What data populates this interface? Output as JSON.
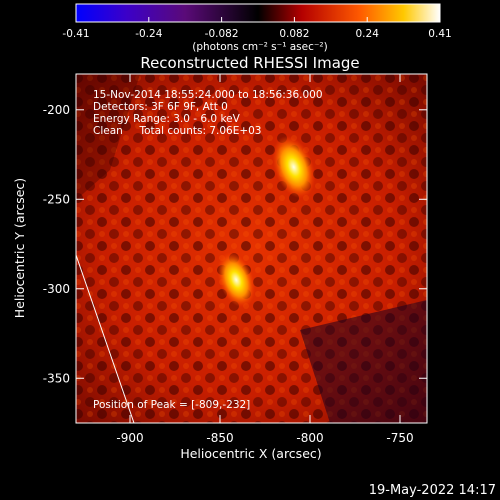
{
  "chart_data": {
    "type": "heatmap",
    "title": "Reconstructed RHESSI Image",
    "xlabel": "Heliocentric X (arcsec)",
    "ylabel": "Heliocentric Y (arcsec)",
    "xlim": [
      -930,
      -735
    ],
    "ylim": [
      -375,
      -180
    ],
    "xticks": [
      -900,
      -850,
      -800,
      -750
    ],
    "yticks": [
      -200,
      -250,
      -300,
      -350
    ],
    "colorbar": {
      "label": "(photons cm⁻² s⁻¹ asec⁻²)",
      "range": [
        -0.41,
        0.41
      ],
      "ticks": [
        "-0.41",
        "-0.24",
        "-0.082",
        "0.082",
        "0.24",
        "0.41"
      ],
      "colormap": "blue-purple-red-yellow-white"
    },
    "sources": [
      {
        "x": -809,
        "y": -232,
        "peak": 0.41
      },
      {
        "x": -841,
        "y": -295,
        "peak": 0.36
      }
    ],
    "annotations": [
      "15-Nov-2014 18:55:24.000 to 18:56:36.000",
      "Detectors: 3F 6F 9F, Att 0",
      "Energy Range: 3.0 - 6.0 keV",
      "Clean     Total counts: 7.06E+03"
    ],
    "peak_label": "Position of Peak = [-809,-232]",
    "footer_date": "19-May-2022 14:17"
  }
}
